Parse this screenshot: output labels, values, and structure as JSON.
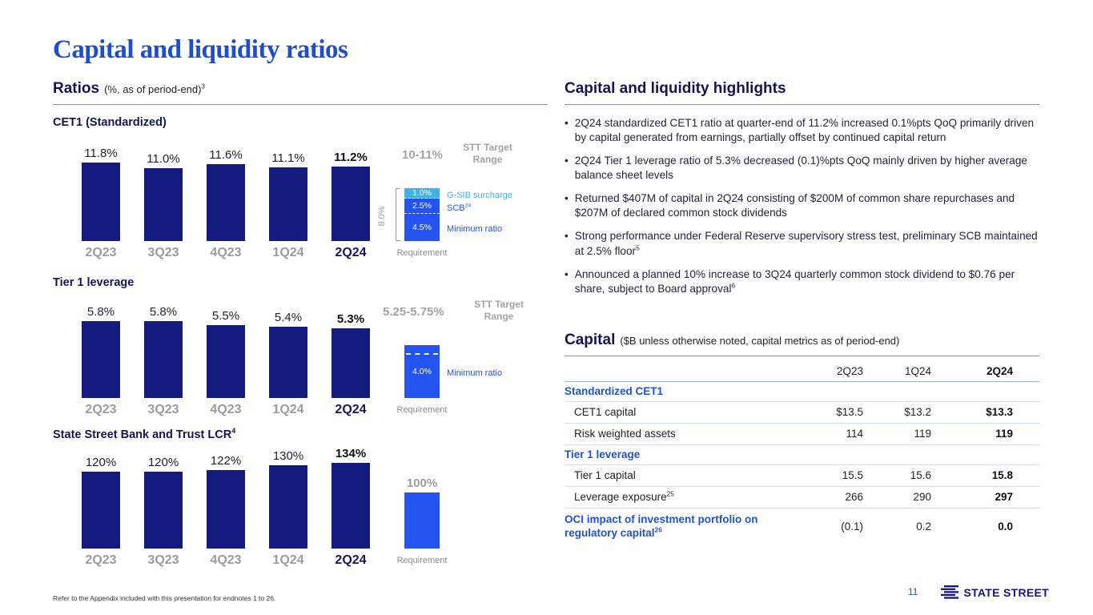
{
  "colors": {
    "navy_bar": "#141b7f",
    "bright_blue": "#2453f0",
    "cyan": "#3cb4e6",
    "title_blue": "#1d4ed0",
    "heading_navy": "#141450",
    "gray_label": "#9b9b9b",
    "table_blue": "#2052d8"
  },
  "slide": {
    "title": "Capital and liquidity ratios",
    "footnote": "Refer to the Appendix included with this presentation for endnotes 1 to 26.",
    "page_number": "11",
    "logo_text": "STATE STREET"
  },
  "ratios": {
    "heading": "Ratios",
    "heading_note": "(%, as of period-end)",
    "heading_sup": "3"
  },
  "chart_data": [
    {
      "type": "bar",
      "title": "CET1 (Standardized)",
      "title_sup": "",
      "categories": [
        "2Q23",
        "3Q23",
        "4Q23",
        "1Q24",
        "2Q24"
      ],
      "values": [
        11.8,
        11.0,
        11.6,
        11.1,
        11.2
      ],
      "value_labels": [
        "11.8%",
        "11.0%",
        "11.6%",
        "11.1%",
        "11.2%"
      ],
      "ylim": [
        0,
        13
      ],
      "requirement": {
        "caption": "Requirement",
        "bracket_label": "8.0%",
        "target_range": "10-11%",
        "target_range_label": "STT Target Range",
        "segments": [
          {
            "value": 4.5,
            "label": "4.5%",
            "side_label": "Minimum ratio",
            "side_label_sup": "",
            "color": "bright_blue"
          },
          {
            "value": 2.5,
            "label": "2.5%",
            "side_label": "SCB",
            "side_label_sup": "24",
            "color": "bright_blue"
          },
          {
            "value": 1.0,
            "label": "1.0%",
            "side_label": "G-SIB surcharge",
            "side_label_sup": "",
            "color": "cyan"
          }
        ]
      }
    },
    {
      "type": "bar",
      "title": "Tier 1 leverage",
      "title_sup": "",
      "categories": [
        "2Q23",
        "3Q23",
        "4Q23",
        "1Q24",
        "2Q24"
      ],
      "values": [
        5.8,
        5.8,
        5.5,
        5.4,
        5.3
      ],
      "value_labels": [
        "5.8%",
        "5.8%",
        "5.5%",
        "5.4%",
        "5.3%"
      ],
      "ylim": [
        0,
        7
      ],
      "requirement": {
        "caption": "Requirement",
        "target_range": "5.25-5.75%",
        "target_range_label": "STT Target Range",
        "segments": [
          {
            "value": 4.0,
            "label": "4.0%",
            "side_label": "Minimum ratio",
            "side_label_sup": "",
            "color": "bright_blue"
          }
        ]
      }
    },
    {
      "type": "bar",
      "title": "State Street Bank and Trust LCR",
      "title_sup": "4",
      "categories": [
        "2Q23",
        "3Q23",
        "4Q23",
        "1Q24",
        "2Q24"
      ],
      "values": [
        120,
        120,
        122,
        130,
        134
      ],
      "value_labels": [
        "120%",
        "120%",
        "122%",
        "130%",
        "134%"
      ],
      "ylim": [
        0,
        160
      ],
      "requirement": {
        "caption": "Requirement",
        "segments": [
          {
            "value": 100,
            "label": "100%",
            "label_above": true,
            "color": "bright_blue"
          }
        ]
      }
    }
  ],
  "highlights": {
    "heading": "Capital and liquidity highlights",
    "bullets": [
      {
        "text": "2Q24 standardized CET1 ratio at quarter-end of 11.2% increased 0.1%pts QoQ primarily driven by capital generated from earnings, partially offset by continued capital return",
        "sup": ""
      },
      {
        "text": "2Q24 Tier 1 leverage ratio of 5.3% decreased (0.1)%pts QoQ mainly driven by higher average balance sheet levels",
        "sup": ""
      },
      {
        "text": "Returned $407M of capital in 2Q24 consisting of $200M of common share repurchases and $207M of declared common stock dividends",
        "sup": ""
      },
      {
        "text": "Strong performance under Federal Reserve supervisory stress test, preliminary SCB maintained at 2.5% floor",
        "sup": "5"
      },
      {
        "text": "Announced a planned 10% increase to 3Q24 quarterly common stock dividend to $0.76 per share, subject to Board approval",
        "sup": "6"
      }
    ]
  },
  "capital_table": {
    "heading": "Capital",
    "heading_note": "($B unless otherwise noted, capital metrics as of period-end)",
    "columns": [
      "2Q23",
      "1Q24",
      "2Q24"
    ],
    "rows": [
      {
        "type": "section",
        "label": "Standardized CET1",
        "label_sup": "",
        "values": [
          "",
          "",
          ""
        ]
      },
      {
        "type": "data",
        "label": "CET1 capital",
        "label_sup": "",
        "values": [
          "$13.5",
          "$13.2",
          "$13.3"
        ]
      },
      {
        "type": "data",
        "label": "Risk weighted assets",
        "label_sup": "",
        "values": [
          "114",
          "119",
          "119"
        ]
      },
      {
        "type": "section",
        "label": "Tier 1 leverage",
        "label_sup": "",
        "values": [
          "",
          "",
          ""
        ]
      },
      {
        "type": "data",
        "label": "Tier 1 capital",
        "label_sup": "",
        "values": [
          "15.5",
          "15.6",
          "15.8"
        ]
      },
      {
        "type": "data",
        "label": "Leverage exposure",
        "label_sup": "25",
        "values": [
          "266",
          "290",
          "297"
        ]
      },
      {
        "type": "oci",
        "label": "OCI impact of investment portfolio on regulatory capital",
        "label_sup": "26",
        "values": [
          "(0.1)",
          "0.2",
          "0.0"
        ]
      }
    ]
  }
}
